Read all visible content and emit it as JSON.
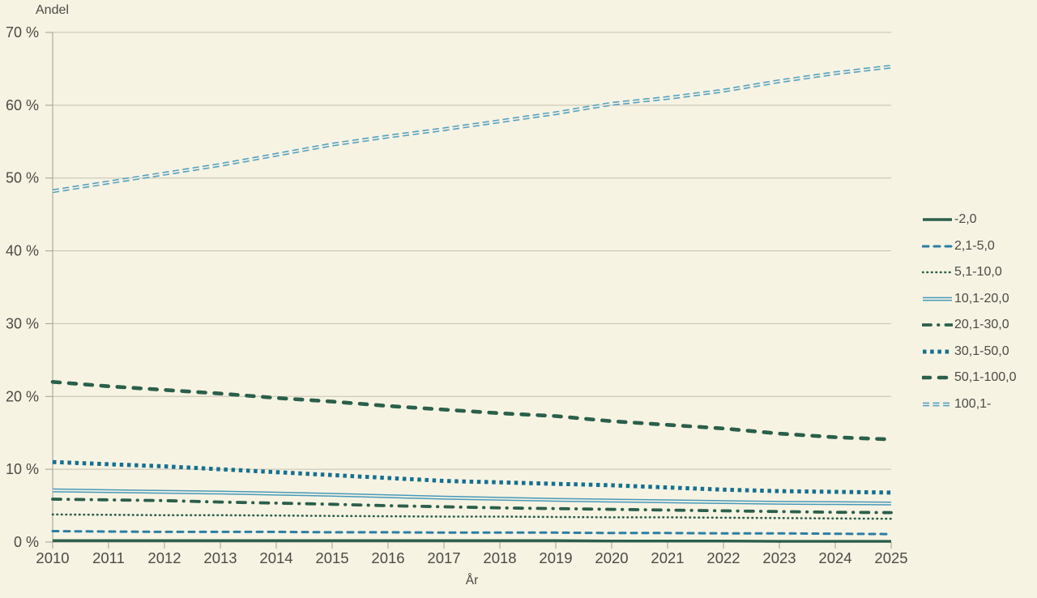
{
  "page": {
    "background": "#f7f3e3"
  },
  "chart_data": {
    "type": "line",
    "title": "",
    "ylabel": "Andel",
    "xlabel": "År",
    "x_labels": [
      "2010",
      "2011",
      "2012",
      "2013",
      "2014",
      "2015",
      "2016",
      "2017",
      "2018",
      "2019",
      "2020",
      "2021",
      "2022",
      "2023",
      "2024",
      "2025"
    ],
    "yticks": [
      0,
      10,
      20,
      30,
      40,
      50,
      60,
      70
    ],
    "ytick_labels": [
      "0 %",
      "10 %",
      "20 %",
      "30 %",
      "40 %",
      "50 %",
      "60 %",
      "70 %"
    ],
    "ylim": [
      0,
      70
    ],
    "grid": true,
    "legend_position": "right",
    "axis_color": "#a39e90",
    "grid_color": "#c6c1b1",
    "text_color": "#4b4b45",
    "series": [
      {
        "name": "-2,0",
        "style": "solid",
        "color": "#2a5f4b",
        "values": [
          0.2,
          0.2,
          0.2,
          0.2,
          0.2,
          0.2,
          0.2,
          0.2,
          0.2,
          0.2,
          0.15,
          0.15,
          0.15,
          0.1,
          0.1,
          0.1
        ]
      },
      {
        "name": "2,1-5,0",
        "style": "dashed",
        "color": "#2b7ea3",
        "values": [
          1.5,
          1.45,
          1.4,
          1.4,
          1.4,
          1.35,
          1.35,
          1.3,
          1.3,
          1.3,
          1.25,
          1.25,
          1.2,
          1.2,
          1.15,
          1.1
        ]
      },
      {
        "name": "5,1-10,0",
        "style": "dotted",
        "color": "#2a5f4b",
        "values": [
          3.8,
          3.75,
          3.7,
          3.7,
          3.65,
          3.6,
          3.55,
          3.5,
          3.5,
          3.45,
          3.4,
          3.4,
          3.35,
          3.3,
          3.25,
          3.2
        ]
      },
      {
        "name": "10,1-20,0",
        "style": "double-solid",
        "color": "#4699ba",
        "values": [
          7.1,
          7.0,
          6.9,
          6.8,
          6.65,
          6.5,
          6.3,
          6.1,
          5.95,
          5.8,
          5.7,
          5.6,
          5.5,
          5.4,
          5.35,
          5.3
        ]
      },
      {
        "name": "20,1-30,0",
        "style": "dash-dot",
        "color": "#2a5f4b",
        "values": [
          5.9,
          5.8,
          5.7,
          5.5,
          5.35,
          5.2,
          5.0,
          4.85,
          4.7,
          4.6,
          4.5,
          4.4,
          4.3,
          4.2,
          4.1,
          4.05
        ]
      },
      {
        "name": "30,1-50,0",
        "style": "square-dot",
        "color": "#15708f",
        "values": [
          11.0,
          10.7,
          10.4,
          10.0,
          9.6,
          9.2,
          8.8,
          8.4,
          8.2,
          8.0,
          7.8,
          7.5,
          7.2,
          7.0,
          6.9,
          6.8
        ]
      },
      {
        "name": "50,1-100,0",
        "style": "long-dash",
        "color": "#2a5f4b",
        "values": [
          22.0,
          21.4,
          20.9,
          20.4,
          19.8,
          19.3,
          18.7,
          18.2,
          17.7,
          17.3,
          16.6,
          16.1,
          15.6,
          14.9,
          14.4,
          14.1
        ]
      },
      {
        "name": "100,1-",
        "style": "double-dash",
        "color": "#55a1bf",
        "values": [
          48.2,
          49.4,
          50.6,
          51.8,
          53.2,
          54.6,
          55.7,
          56.7,
          57.8,
          58.9,
          60.2,
          61.0,
          62.0,
          63.3,
          64.4,
          65.3
        ]
      }
    ]
  }
}
